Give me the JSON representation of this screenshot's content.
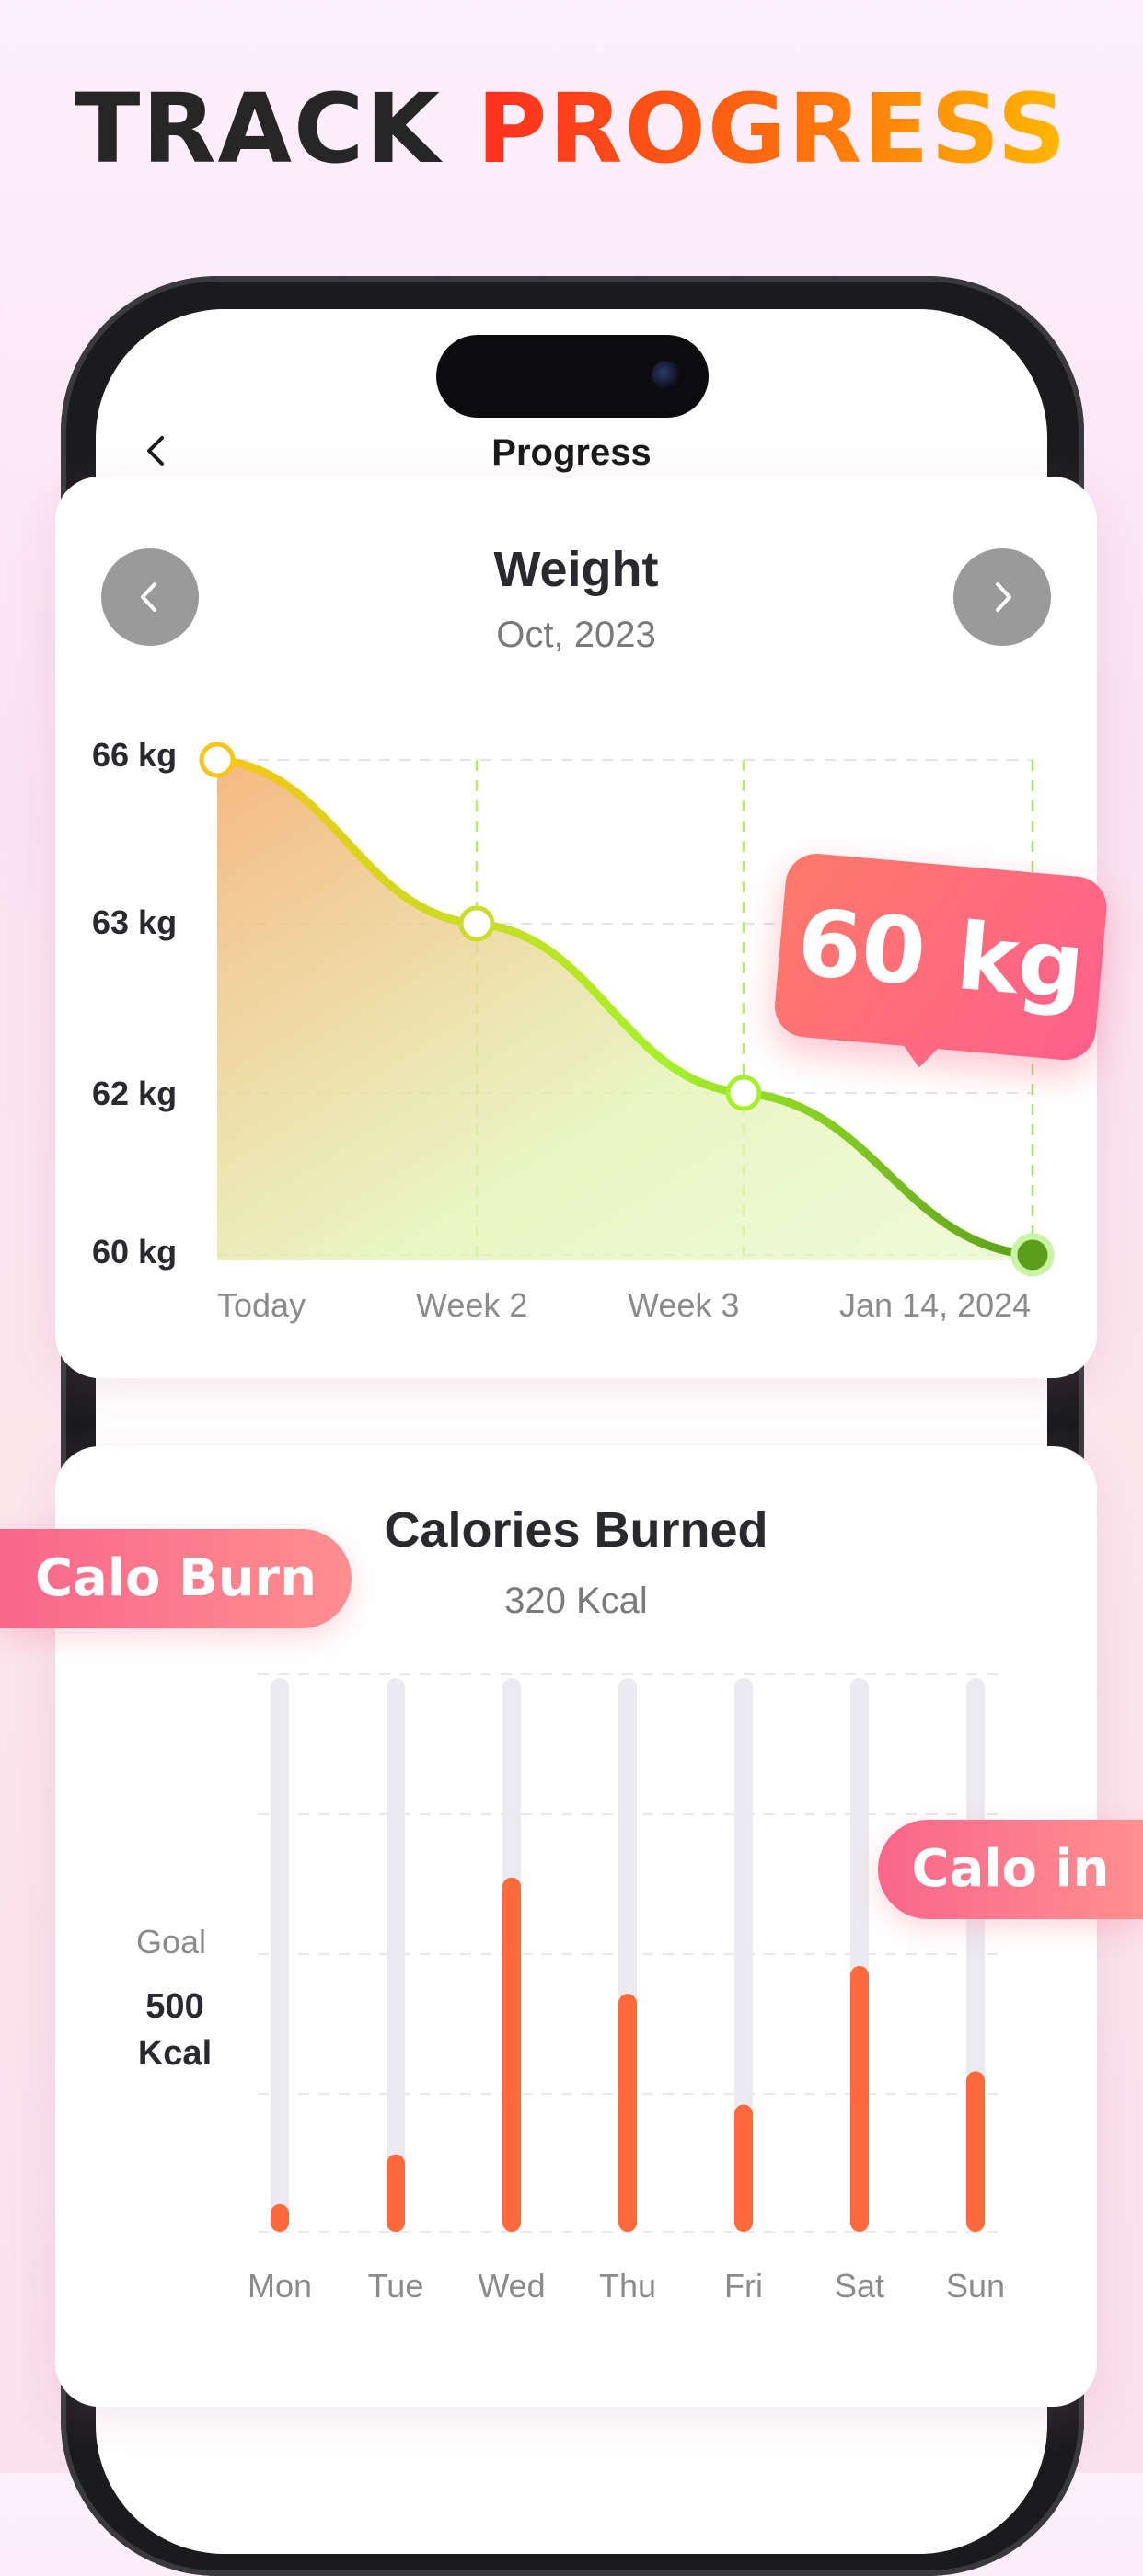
{
  "headline": {
    "part1": "TRACK",
    "part2": "PROGRESS"
  },
  "screen": {
    "title": "Progress"
  },
  "weight_card": {
    "title": "Weight",
    "subtitle": "Oct, 2023",
    "badge": "60 kg",
    "chart_data": {
      "type": "line",
      "x": [
        "Today",
        "Week 2",
        "Week 3",
        "Jan 14, 2024"
      ],
      "y_tick_labels": [
        "66 kg",
        "63 kg",
        "62 kg",
        "60 kg"
      ],
      "series": [
        {
          "values": [
            66,
            63,
            62,
            60
          ]
        }
      ],
      "grid": true
    },
    "colors": {
      "start": "#f5c518",
      "mid": "#a6f02a",
      "end": "#5c9e1a"
    }
  },
  "calories_card": {
    "title": "Calories Burned",
    "subtitle": "320 Kcal",
    "goal_label": "Goal",
    "goal_value_line1": "500",
    "goal_value_line2": "Kcal",
    "chart_data": {
      "type": "bar",
      "categories": [
        "Mon",
        "Tue",
        "Wed",
        "Thu",
        "Fri",
        "Sat",
        "Sun"
      ],
      "values": [
        0.05,
        0.14,
        0.64,
        0.43,
        0.23,
        0.48,
        0.29
      ],
      "value_unit": "fraction of bar track"
    },
    "colors": {
      "bar": "#ff6a3d",
      "track": "#ebeaf0"
    }
  },
  "badges": {
    "calo_burn": "Calo Burn",
    "calo_in": "Calo in"
  }
}
